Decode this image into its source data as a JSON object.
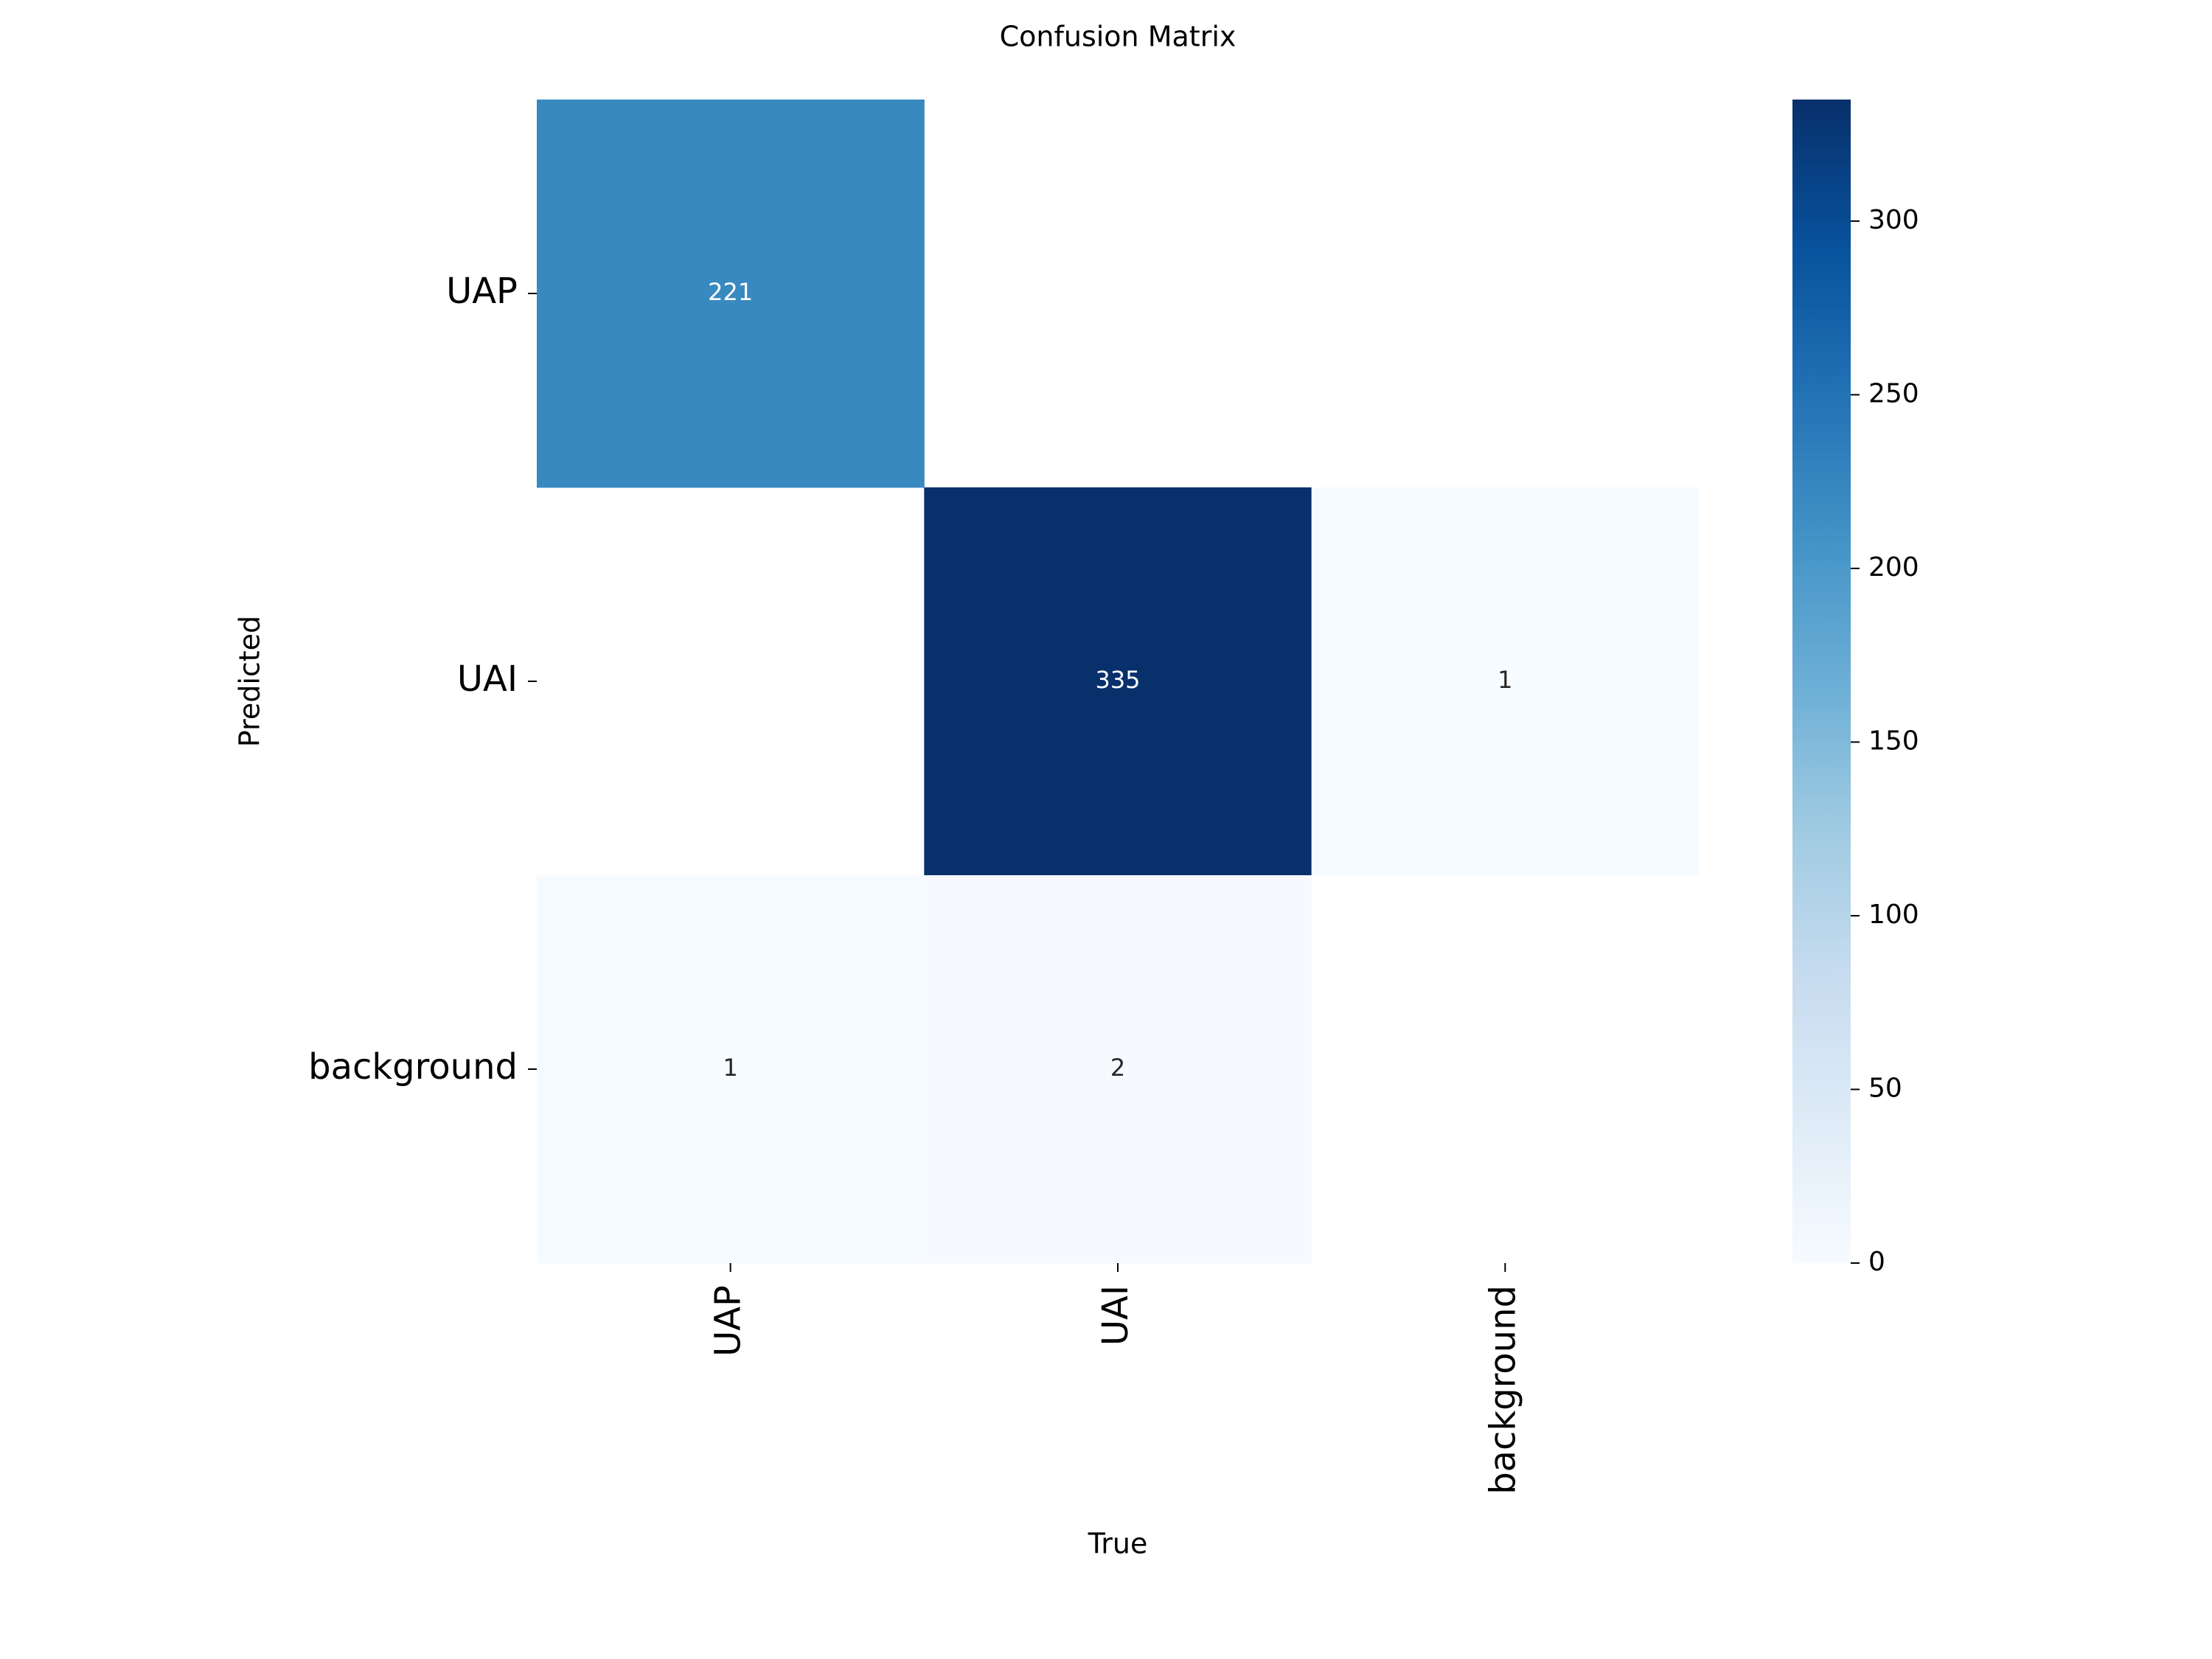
{
  "chart_data": {
    "type": "heatmap",
    "title": "Confusion Matrix",
    "x_label": "True",
    "y_label": "Predicted",
    "x_categories": [
      "UAP",
      "UAI",
      "background"
    ],
    "y_categories": [
      "UAP",
      "UAI",
      "background"
    ],
    "values": [
      [
        221,
        null,
        null
      ],
      [
        null,
        335,
        1
      ],
      [
        1,
        2,
        null
      ]
    ],
    "colorbar": {
      "lim": [
        0,
        335
      ],
      "ticks": [
        0,
        50,
        100,
        150,
        200,
        250,
        300
      ]
    },
    "colorscale": [
      "#f7fbff",
      "#deebf7",
      "#c6dbef",
      "#9ecae1",
      "#6baed6",
      "#4292c6",
      "#2171b5",
      "#08519c",
      "#08306b"
    ]
  }
}
